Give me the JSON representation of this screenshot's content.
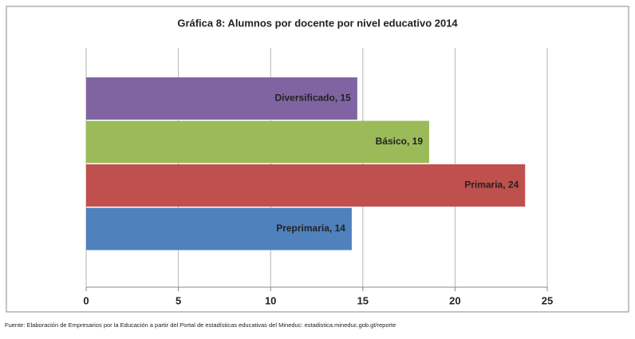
{
  "chart_data": {
    "type": "bar",
    "orientation": "horizontal",
    "title": "Gráfica 8: Alumnos por docente por nivel educativo 2014",
    "categories": [
      "Diversificado",
      "Básico",
      "Primaria",
      "Preprimaria"
    ],
    "values": [
      14.7,
      18.6,
      23.8,
      14.4
    ],
    "value_labels": [
      "Diversificado, 15",
      "Básico, 19",
      "Primaria, 24",
      "Preprimaria, 14"
    ],
    "colors": [
      "#8064a2",
      "#9bbb59",
      "#c0504d",
      "#4f81bd"
    ],
    "xlim": [
      0,
      25
    ],
    "xticks": [
      0,
      5,
      10,
      15,
      20,
      25
    ],
    "grid": true,
    "source": "Fuente: Elaboración de Empresarios por la Educación a partir del Portal de estadísticas educativas del Mineduc: estadistica.mineduc.gob.gt/reporte"
  }
}
